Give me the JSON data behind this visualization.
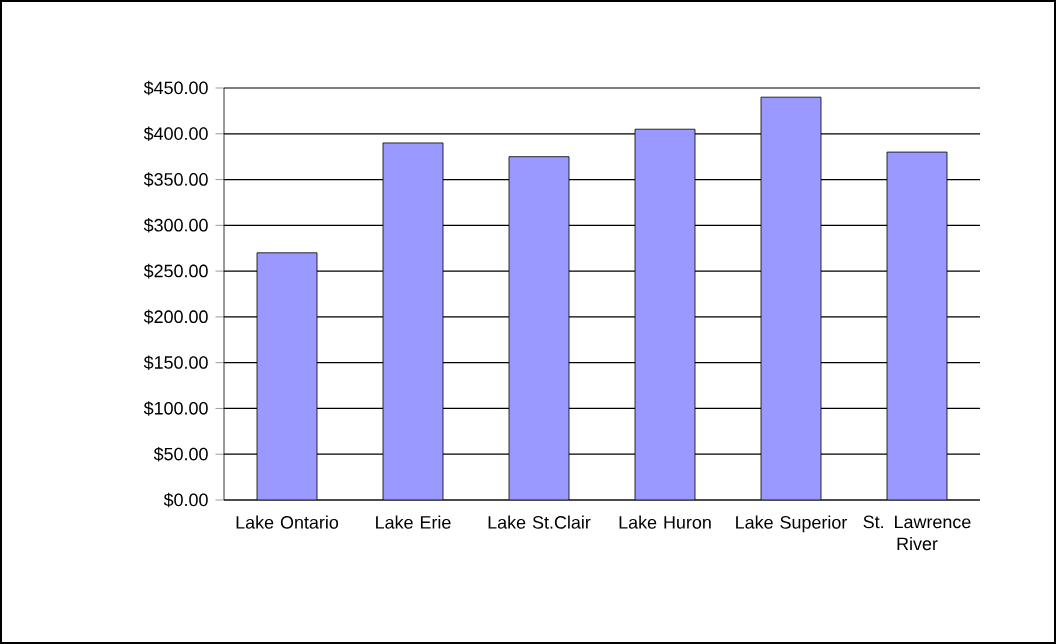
{
  "chart_data": {
    "type": "bar",
    "categories": [
      "Lake Ontario",
      "Lake Erie",
      "Lake St.Clair",
      "Lake Huron",
      "Lake Superior",
      "St. Lawrence River"
    ],
    "values": [
      270,
      390,
      375,
      405,
      440,
      380
    ],
    "color": "#9999ff",
    "ylim": [
      0,
      450
    ],
    "yticks": [
      {
        "value": 0,
        "label": "$0.00"
      },
      {
        "value": 50,
        "label": "$50.00"
      },
      {
        "value": 100,
        "label": "$100.00"
      },
      {
        "value": 150,
        "label": "$150.00"
      },
      {
        "value": 200,
        "label": "$200.00"
      },
      {
        "value": 250,
        "label": "$250.00"
      },
      {
        "value": 300,
        "label": "$300.00"
      },
      {
        "value": 350,
        "label": "$350.00"
      },
      {
        "value": 400,
        "label": "$400.00"
      },
      {
        "value": 450,
        "label": "$450.00"
      }
    ],
    "grid": "y"
  }
}
